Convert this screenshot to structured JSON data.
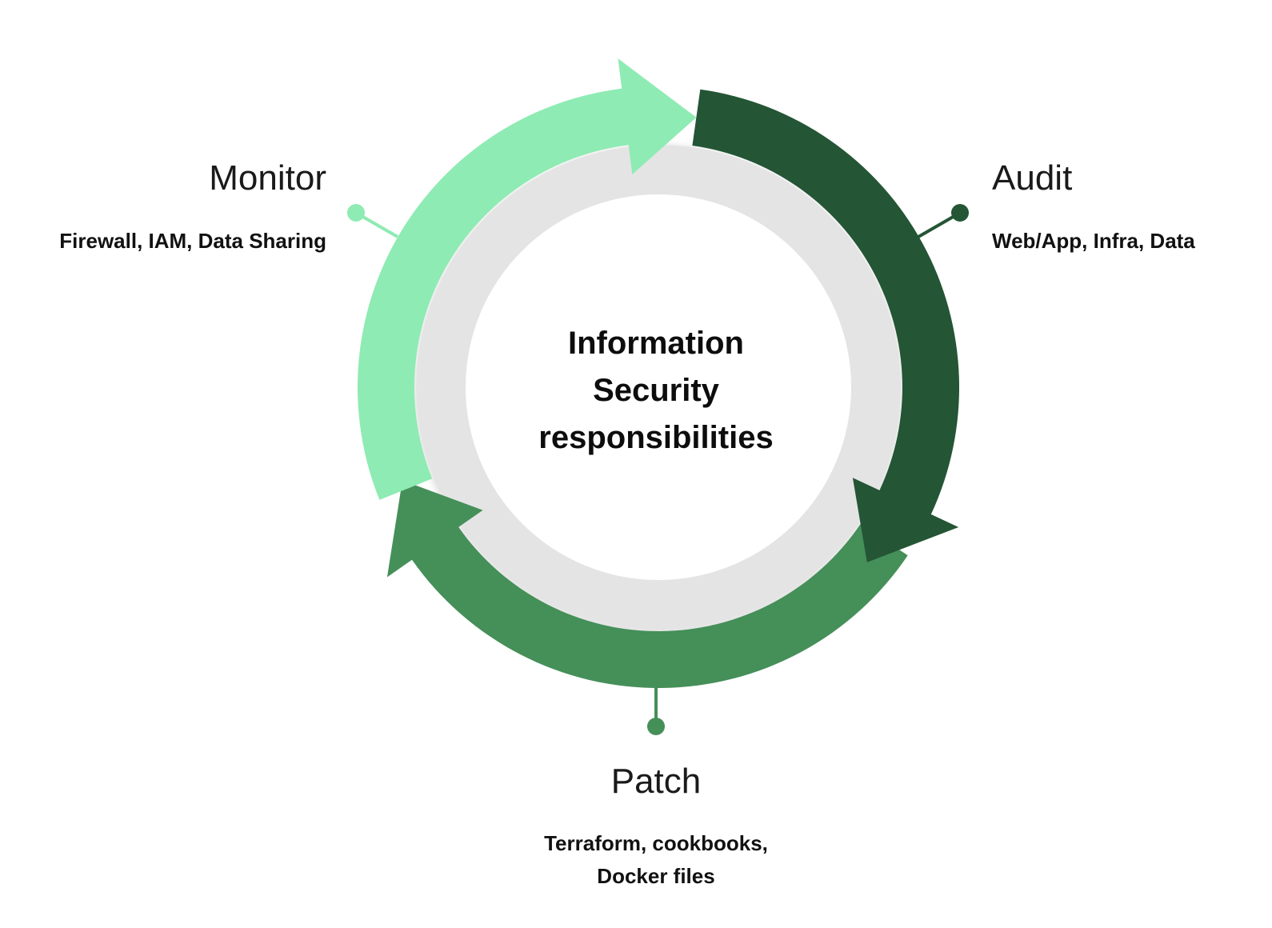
{
  "center": {
    "lines": [
      "Information",
      "Security",
      "responsibilities"
    ]
  },
  "stages": {
    "monitor": {
      "title": "Monitor",
      "description": "Firewall, IAM, Data Sharing",
      "color": "#8EEBB3"
    },
    "audit": {
      "title": "Audit",
      "description": "Web/App, Infra, Data",
      "color": "#245535"
    },
    "patch": {
      "title": "Patch",
      "description_lines": [
        "Terraform, cookbooks,",
        "Docker files"
      ],
      "color": "#458F59"
    }
  },
  "colors": {
    "inner_ring": "#E4E4E4",
    "center_fill": "#FFFFFF",
    "background": "#FFFFFF"
  }
}
